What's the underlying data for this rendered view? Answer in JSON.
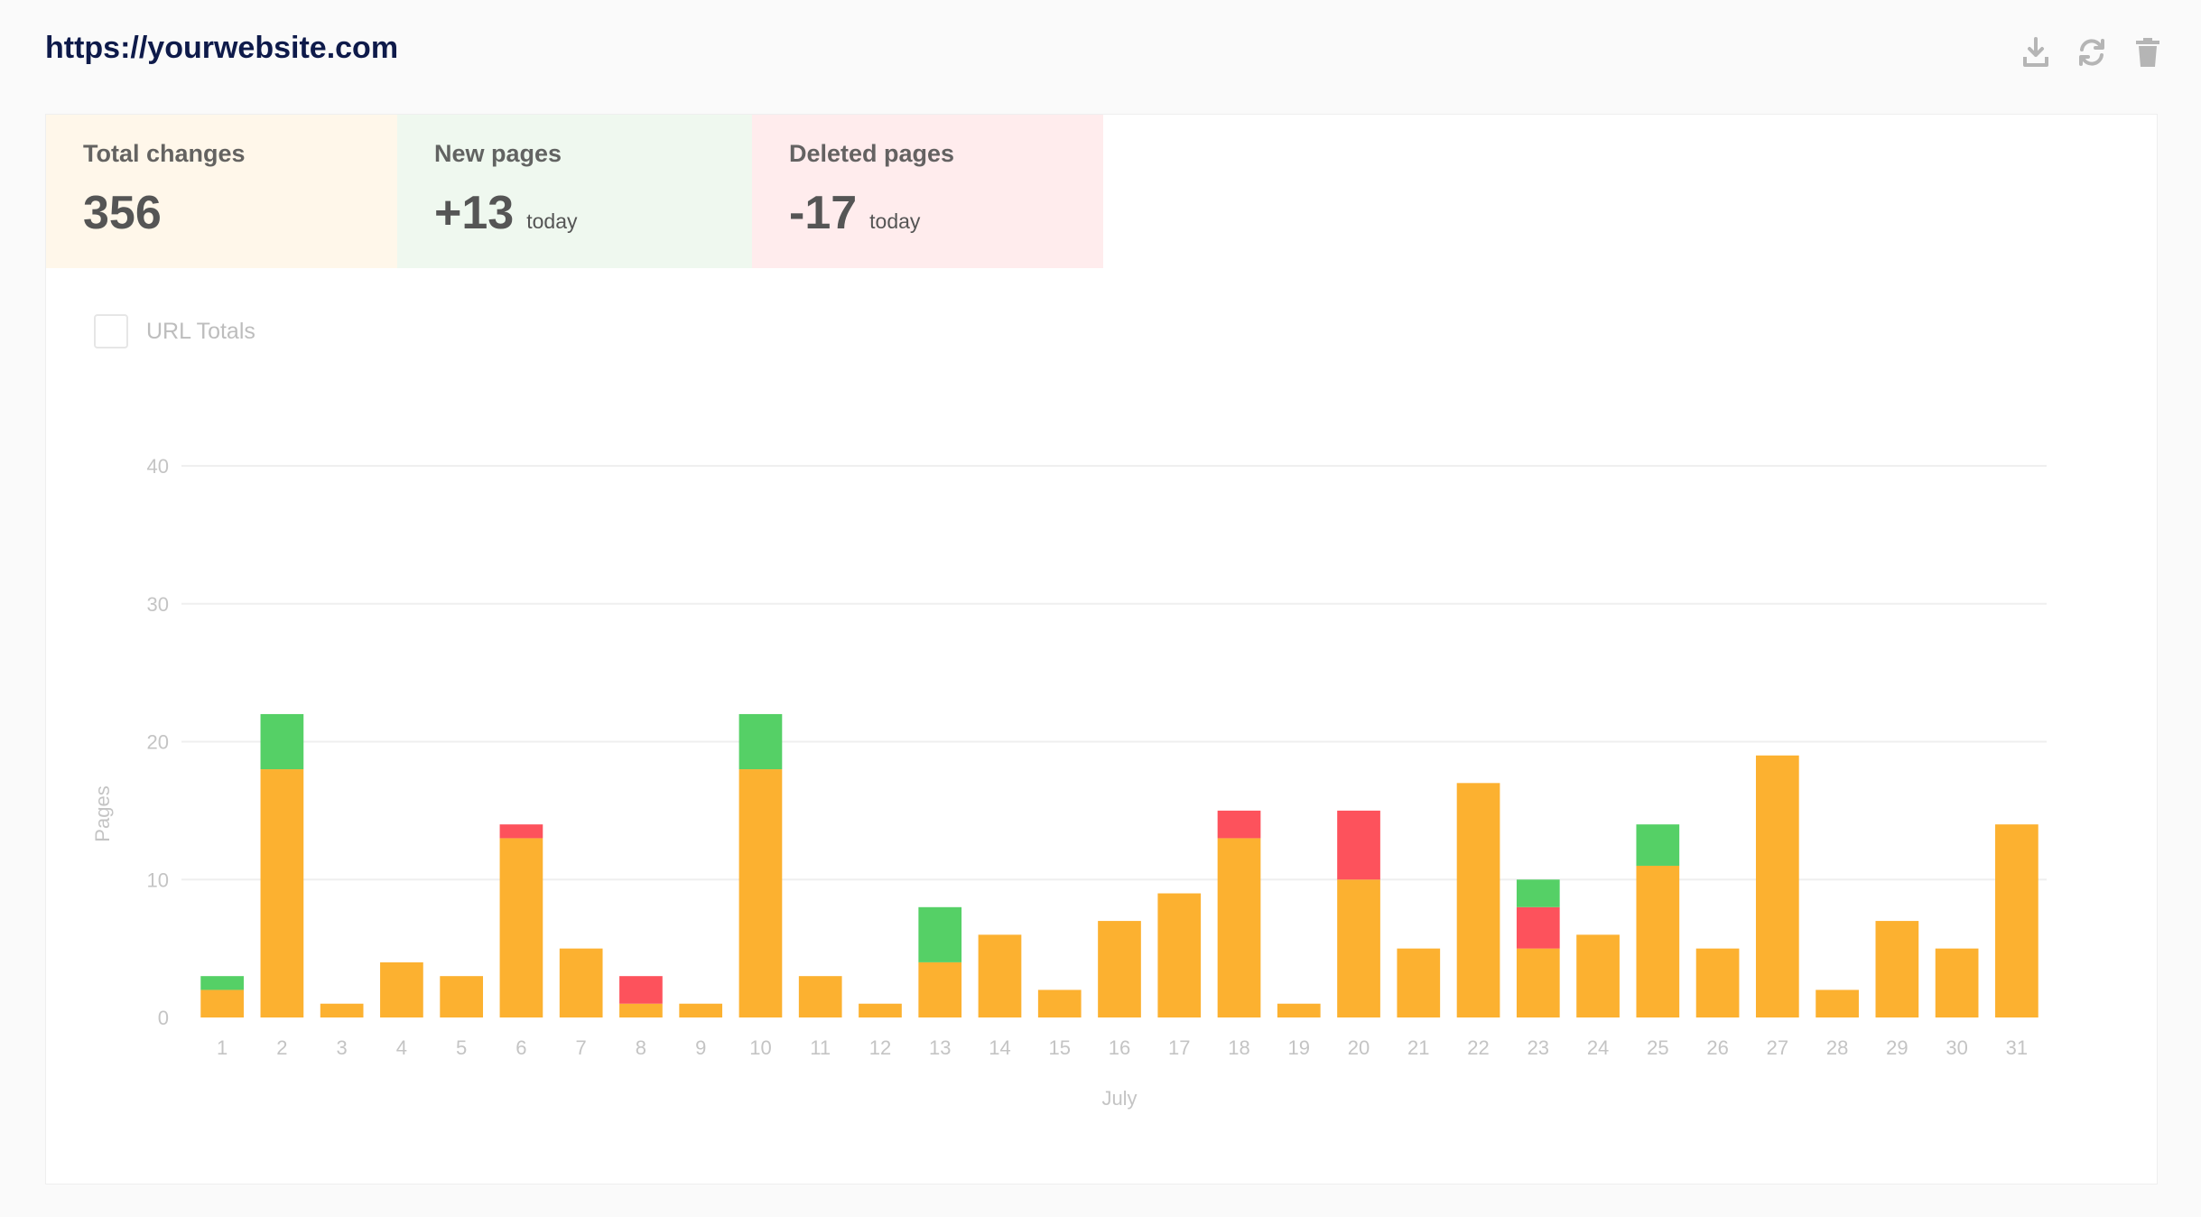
{
  "header": {
    "site_url": "https://yourwebsite.com",
    "actions": [
      {
        "name": "download-icon",
        "label": "Download"
      },
      {
        "name": "refresh-icon",
        "label": "Refresh"
      },
      {
        "name": "trash-icon",
        "label": "Delete"
      }
    ]
  },
  "stats": {
    "total": {
      "title": "Total changes",
      "value": "356",
      "unit": ""
    },
    "new": {
      "title": "New pages",
      "value": "+13",
      "unit": "today"
    },
    "deleted": {
      "title": "Deleted pages",
      "value": "-17",
      "unit": "today"
    }
  },
  "legend": {
    "label": "URL Totals",
    "checked": false
  },
  "colors": {
    "changes": "#fcb130",
    "new": "#55d066",
    "deleted": "#fd525c"
  },
  "chart_data": {
    "type": "bar",
    "stacked": true,
    "xlabel": "July",
    "ylabel": "Pages",
    "ylim": [
      0,
      40
    ],
    "yticks": [
      0,
      10,
      20,
      30,
      40
    ],
    "grid": true,
    "categories": [
      "1",
      "2",
      "3",
      "4",
      "5",
      "6",
      "7",
      "8",
      "9",
      "10",
      "11",
      "12",
      "13",
      "14",
      "15",
      "16",
      "17",
      "18",
      "19",
      "20",
      "21",
      "22",
      "23",
      "24",
      "25",
      "26",
      "27",
      "28",
      "29",
      "30",
      "31"
    ],
    "series": [
      {
        "key": "changes",
        "values": [
          2,
          18,
          1,
          4,
          3,
          13,
          5,
          1,
          1,
          18,
          3,
          1,
          4,
          6,
          2,
          7,
          9,
          13,
          1,
          10,
          5,
          17,
          5,
          6,
          11,
          5,
          19,
          2,
          7,
          5,
          14
        ]
      },
      {
        "key": "deleted",
        "values": [
          0,
          0,
          0,
          0,
          0,
          1,
          0,
          2,
          0,
          0,
          0,
          0,
          0,
          0,
          0,
          0,
          0,
          2,
          0,
          5,
          0,
          0,
          3,
          0,
          0,
          0,
          0,
          0,
          0,
          0,
          0
        ]
      },
      {
        "key": "new",
        "values": [
          1,
          4,
          0,
          0,
          0,
          0,
          0,
          0,
          0,
          4,
          0,
          0,
          4,
          0,
          0,
          0,
          0,
          0,
          0,
          0,
          0,
          0,
          2,
          0,
          3,
          0,
          0,
          0,
          0,
          0,
          0
        ]
      }
    ]
  }
}
